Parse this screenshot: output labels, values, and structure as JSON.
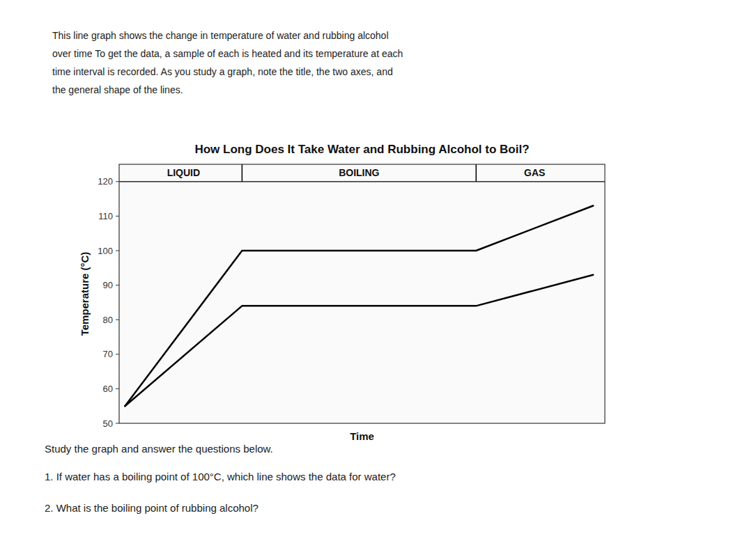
{
  "chart_data": {
    "type": "line",
    "title": "How Long Does It Take Water and Rubbing Alcohol to Boil?",
    "x_label": "Time",
    "y_label": "Temperature (°C)",
    "x": [
      0,
      1,
      2,
      3,
      4
    ],
    "series": [
      {
        "color": "#000000",
        "values": [
          55,
          100,
          100,
          100,
          113
        ]
      },
      {
        "color": "#000000",
        "values": [
          55,
          84,
          84,
          84,
          93
        ]
      }
    ],
    "xlim": [
      -0.05,
      4.1
    ],
    "ylim": [
      50,
      125
    ],
    "yticks": [
      50,
      60,
      70,
      80,
      90,
      100,
      110,
      120
    ],
    "tick_labels": "y",
    "grid": false,
    "separator_y": 120.0,
    "dividers_x": [
      1.0,
      3.0
    ],
    "annotations": [
      {
        "text": "LIQUID",
        "x": 0.5,
        "y": 122.5
      },
      {
        "text": "BOILING",
        "x": 2.0,
        "y": 122.5
      },
      {
        "text": "GAS",
        "x": 3.5,
        "y": 122.5
      }
    ],
    "description": [
      "This line graph shows the change in temperature of water and rubbing alcohol",
      "over time To get the data, a sample of each is heated and its temperature at each",
      "time interval is recorded. As you study a graph, note the title, the two axes, and",
      "the general shape of the lines."
    ],
    "notes": [
      "Study the graph and answer the questions below.",
      "1. If water has a boiling point of 100°C, which line shows the data for water?",
      "2. What is the boiling point of rubbing alcohol?"
    ]
  }
}
